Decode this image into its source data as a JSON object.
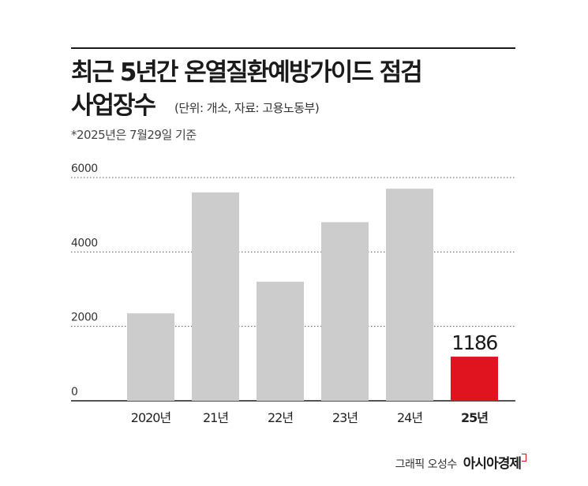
{
  "header": {
    "title_line1": "최근 5년간 온열질환예방가이드 점검",
    "title_line2": "사업장수",
    "unit_text": "(단위: 개소, 자료: 고용노동부)",
    "note": "*2025년은 7월29일 기준"
  },
  "footer": {
    "credit": "그래픽 오성수",
    "brand": "아시아경제"
  },
  "colors": {
    "bar_default": "#cccccc",
    "bar_highlight": "#e0141e",
    "gridline": "#555555",
    "baseline": "#1a1a1a"
  },
  "chart_data": {
    "type": "bar",
    "categories": [
      "2020년",
      "21년",
      "22년",
      "23년",
      "24년",
      "25년"
    ],
    "values": [
      2350,
      5600,
      3200,
      4800,
      5700,
      1186
    ],
    "highlight_index": 5,
    "highlight_label": "1186",
    "ylim": [
      0,
      6000
    ],
    "yticks": [
      "6000",
      "4000",
      "2000",
      "0"
    ],
    "grid": true
  }
}
